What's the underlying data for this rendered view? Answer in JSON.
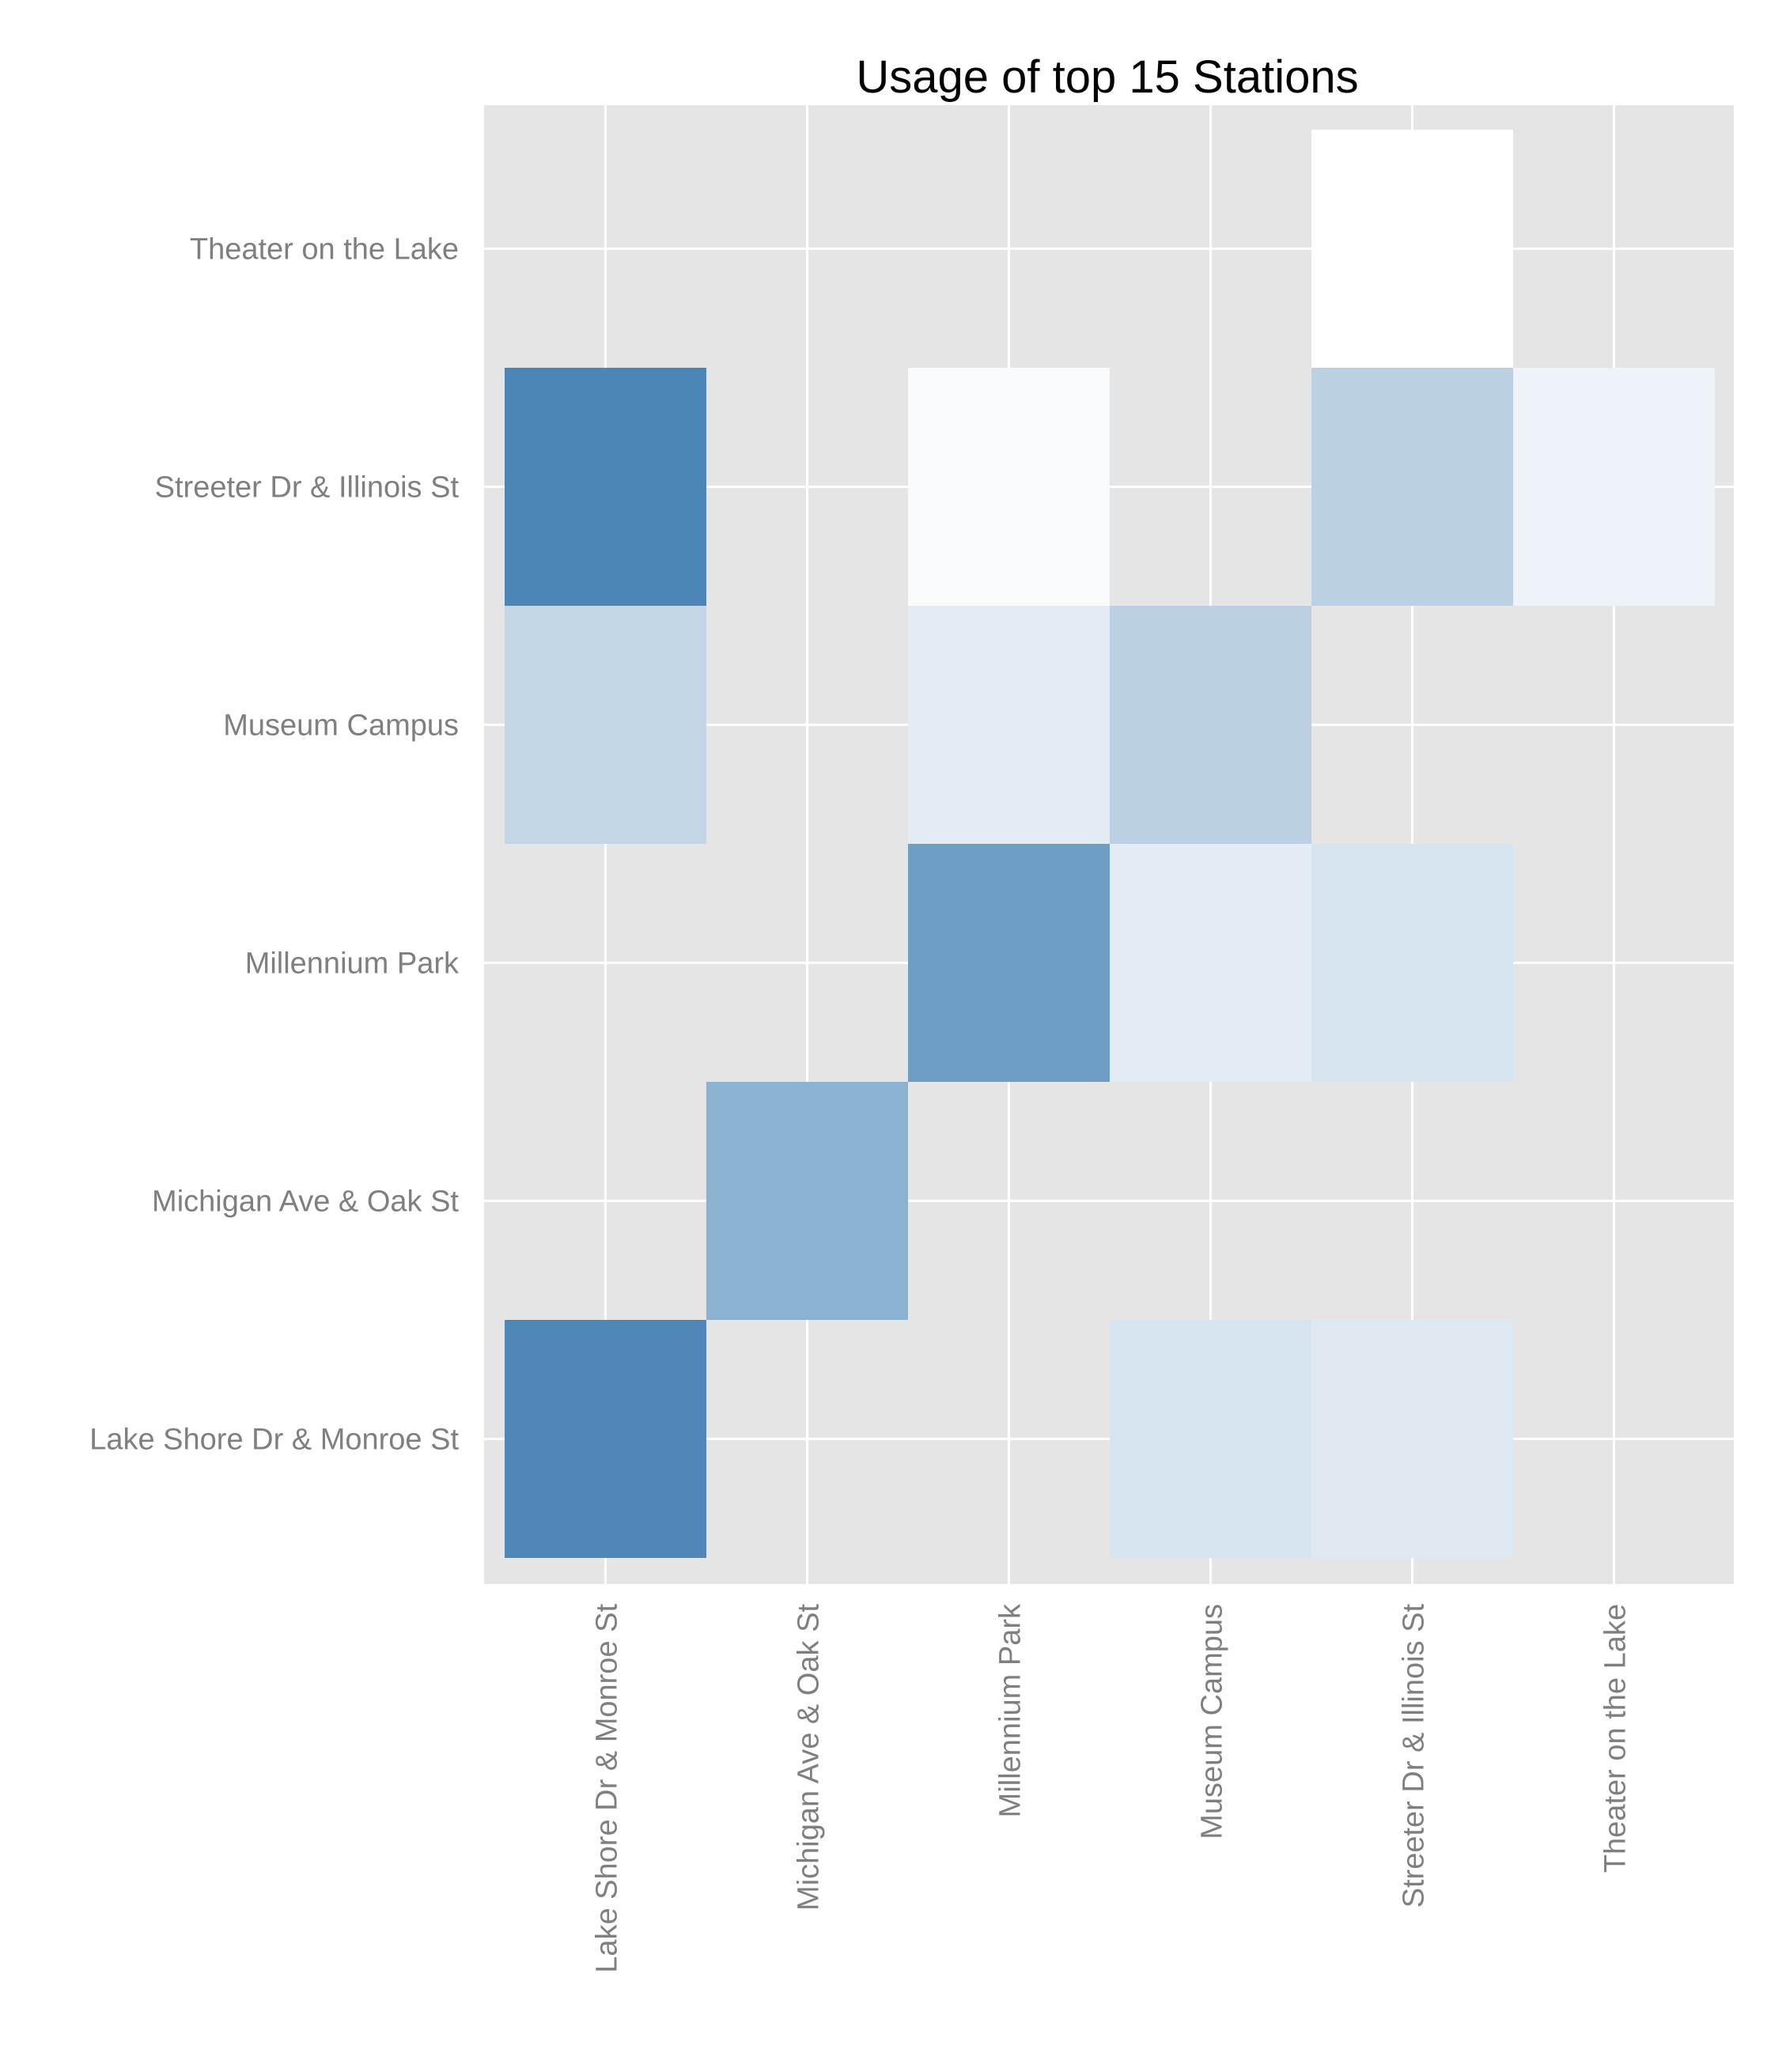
{
  "chart_data": {
    "type": "heatmap",
    "title": "Usage of top 15 Stations",
    "xlabel": "",
    "ylabel": "",
    "x_categories": [
      "Lake Shore Dr & Monroe St",
      "Michigan Ave & Oak St",
      "Millennium Park",
      "Museum Campus",
      "Streeter Dr & Illinois St",
      "Theater on the Lake"
    ],
    "y_categories": [
      "Lake Shore Dr & Monroe St",
      "Michigan Ave & Oak St",
      "Millennium Park",
      "Museum Campus",
      "Streeter Dr & Illinois St",
      "Theater on the Lake"
    ],
    "cells": [
      {
        "x": "Lake Shore Dr & Monroe St",
        "y": "Lake Shore Dr & Monroe St",
        "value": 0.95
      },
      {
        "x": "Museum Campus",
        "y": "Lake Shore Dr & Monroe St",
        "value": 0.22
      },
      {
        "x": "Streeter Dr & Illinois St",
        "y": "Lake Shore Dr & Monroe St",
        "value": 0.18
      },
      {
        "x": "Michigan Ave & Oak St",
        "y": "Michigan Ave & Oak St",
        "value": 0.62
      },
      {
        "x": "Millennium Park",
        "y": "Millennium Park",
        "value": 0.78
      },
      {
        "x": "Museum Campus",
        "y": "Millennium Park",
        "value": 0.15
      },
      {
        "x": "Streeter Dr & Illinois St",
        "y": "Millennium Park",
        "value": 0.22
      },
      {
        "x": "Lake Shore Dr & Monroe St",
        "y": "Museum Campus",
        "value": 0.33
      },
      {
        "x": "Millennium Park",
        "y": "Museum Campus",
        "value": 0.15
      },
      {
        "x": "Museum Campus",
        "y": "Museum Campus",
        "value": 0.37
      },
      {
        "x": "Lake Shore Dr & Monroe St",
        "y": "Streeter Dr & Illinois St",
        "value": 0.97
      },
      {
        "x": "Millennium Park",
        "y": "Streeter Dr & Illinois St",
        "value": 0.04
      },
      {
        "x": "Streeter Dr & Illinois St",
        "y": "Streeter Dr & Illinois St",
        "value": 0.37
      },
      {
        "x": "Theater on the Lake",
        "y": "Streeter Dr & Illinois St",
        "value": 0.1
      },
      {
        "x": "Streeter Dr & Illinois St",
        "y": "Theater on the Lake",
        "value": 0.0
      }
    ],
    "color_scale": {
      "low": "#ffffff",
      "high": "#4682b4"
    },
    "grid": true,
    "panel_background": "#e5e5e5",
    "legend": "none"
  }
}
